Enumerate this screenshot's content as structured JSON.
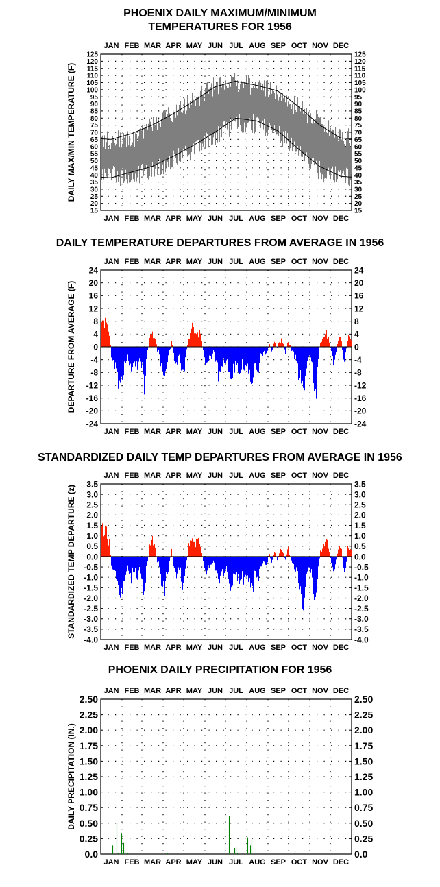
{
  "months": [
    "JAN",
    "FEB",
    "MAR",
    "APR",
    "MAY",
    "JUN",
    "JUL",
    "AUG",
    "SEP",
    "OCT",
    "NOV",
    "DEC"
  ],
  "colors": {
    "above": "#ff2000",
    "below": "#0000ff",
    "temp_band": "#7f7f7f",
    "precip": "#008000",
    "normal_line": "#000000"
  },
  "chart_data": [
    {
      "id": "temp",
      "type": "area",
      "title_line1": "PHOENIX DAILY MAXIMUM/MINIMUM",
      "title_line2": "TEMPERATURES FOR 1956",
      "ylabel": "DAILY MAX/MIN TEMPERATURE (F)",
      "ylim": [
        15,
        125
      ],
      "yticks": [
        15,
        20,
        25,
        30,
        35,
        40,
        45,
        50,
        55,
        60,
        65,
        70,
        75,
        80,
        85,
        90,
        95,
        100,
        105,
        110,
        115,
        120,
        125
      ],
      "grid": "dotted",
      "days": 366,
      "normal_high_monthly": [
        65,
        69,
        75,
        83,
        92,
        102,
        106,
        103,
        99,
        88,
        75,
        66
      ],
      "normal_low_monthly": [
        38,
        42,
        46,
        53,
        61,
        70,
        80,
        78,
        71,
        58,
        46,
        39
      ],
      "actual_high_monthly": [
        64,
        65,
        74,
        83,
        92,
        103,
        106,
        102,
        99,
        87,
        77,
        67
      ],
      "actual_low_monthly": [
        40,
        38,
        44,
        50,
        58,
        67,
        76,
        76,
        69,
        56,
        43,
        38
      ]
    },
    {
      "id": "dep",
      "type": "bar",
      "title": "DAILY TEMPERATURE DEPARTURES FROM AVERAGE IN 1956",
      "ylabel": "DEPARTURE FROM AVERAGE (F)",
      "ylim": [
        -24,
        24
      ],
      "yticks": [
        -24,
        -20,
        -16,
        -12,
        -8,
        -4,
        0,
        4,
        8,
        12,
        16,
        20,
        24
      ],
      "grid": "dotted",
      "anchors": [
        [
          1,
          8
        ],
        [
          4,
          9
        ],
        [
          9,
          9
        ],
        [
          14,
          4
        ],
        [
          16,
          -4
        ],
        [
          22,
          -8
        ],
        [
          27,
          -13
        ],
        [
          31,
          -14
        ],
        [
          35,
          -8
        ],
        [
          40,
          -4
        ],
        [
          45,
          -9
        ],
        [
          49,
          -4
        ],
        [
          53,
          -8
        ],
        [
          57,
          -4
        ],
        [
          61,
          -9
        ],
        [
          64,
          -15
        ],
        [
          68,
          -3
        ],
        [
          72,
          4
        ],
        [
          76,
          6
        ],
        [
          79,
          4
        ],
        [
          83,
          -1
        ],
        [
          86,
          -3
        ],
        [
          90,
          -11
        ],
        [
          94,
          -12
        ],
        [
          98,
          -6
        ],
        [
          101,
          -2
        ],
        [
          104,
          2
        ],
        [
          107,
          -4
        ],
        [
          111,
          -7
        ],
        [
          114,
          -3
        ],
        [
          118,
          -8
        ],
        [
          121,
          -12
        ],
        [
          125,
          -4
        ],
        [
          129,
          4
        ],
        [
          132,
          6
        ],
        [
          135,
          8
        ],
        [
          139,
          4
        ],
        [
          142,
          6
        ],
        [
          146,
          5
        ],
        [
          150,
          -2
        ],
        [
          153,
          -7
        ],
        [
          157,
          -5
        ],
        [
          161,
          -4
        ],
        [
          165,
          -2
        ],
        [
          168,
          -4
        ],
        [
          172,
          -11
        ],
        [
          176,
          -7
        ],
        [
          181,
          -5
        ],
        [
          186,
          -6
        ],
        [
          190,
          -12
        ],
        [
          194,
          -9
        ],
        [
          198,
          -6
        ],
        [
          202,
          -11
        ],
        [
          207,
          -7
        ],
        [
          211,
          -9
        ],
        [
          215,
          -8
        ],
        [
          219,
          -12
        ],
        [
          222,
          -13
        ],
        [
          226,
          -5
        ],
        [
          230,
          -9
        ],
        [
          234,
          -4
        ],
        [
          238,
          -2
        ],
        [
          242,
          -4
        ],
        [
          246,
          1
        ],
        [
          250,
          -2
        ],
        [
          254,
          2
        ],
        [
          258,
          -1
        ],
        [
          262,
          3
        ],
        [
          266,
          2
        ],
        [
          270,
          -2
        ],
        [
          274,
          3
        ],
        [
          278,
          -1
        ],
        [
          282,
          -3
        ],
        [
          286,
          -6
        ],
        [
          290,
          -11
        ],
        [
          294,
          -13
        ],
        [
          297,
          -17
        ],
        [
          301,
          -8
        ],
        [
          304,
          -4
        ],
        [
          308,
          -5
        ],
        [
          312,
          -13
        ],
        [
          315,
          -16
        ],
        [
          318,
          -5
        ],
        [
          321,
          2
        ],
        [
          325,
          3
        ],
        [
          329,
          6
        ],
        [
          333,
          4
        ],
        [
          337,
          -2
        ],
        [
          340,
          -6
        ],
        [
          343,
          -3
        ],
        [
          347,
          3
        ],
        [
          351,
          5
        ],
        [
          354,
          -4
        ],
        [
          357,
          -6
        ],
        [
          361,
          4
        ],
        [
          366,
          3
        ]
      ]
    },
    {
      "id": "std",
      "type": "bar",
      "title": "STANDARDIZED DAILY TEMP DEPARTURES FROM AVERAGE IN 1956",
      "ylabel": "STANDARDIZED TEMP DEPARTURE (z)",
      "ylim": [
        -4.0,
        3.5
      ],
      "yticks": [
        -4.0,
        -3.5,
        -3.0,
        -2.5,
        -2.0,
        -1.5,
        -1.0,
        -0.5,
        0.0,
        0.5,
        1.0,
        1.5,
        2.0,
        2.5,
        3.0,
        3.5
      ],
      "grid": "dotted",
      "anchors": [
        [
          1,
          1.4
        ],
        [
          4,
          1.6
        ],
        [
          9,
          1.5
        ],
        [
          14,
          0.7
        ],
        [
          16,
          -0.6
        ],
        [
          22,
          -1.2
        ],
        [
          27,
          -2.0
        ],
        [
          31,
          -2.3
        ],
        [
          35,
          -1.2
        ],
        [
          40,
          -0.6
        ],
        [
          45,
          -1.3
        ],
        [
          49,
          -0.6
        ],
        [
          53,
          -1.2
        ],
        [
          57,
          -0.6
        ],
        [
          61,
          -1.4
        ],
        [
          64,
          -2.1
        ],
        [
          68,
          -0.5
        ],
        [
          72,
          0.6
        ],
        [
          76,
          1.1
        ],
        [
          79,
          0.6
        ],
        [
          83,
          -0.2
        ],
        [
          86,
          -0.5
        ],
        [
          90,
          -1.7
        ],
        [
          94,
          -1.8
        ],
        [
          98,
          -0.9
        ],
        [
          101,
          -0.3
        ],
        [
          104,
          0.3
        ],
        [
          107,
          -0.6
        ],
        [
          111,
          -1.1
        ],
        [
          114,
          -0.5
        ],
        [
          118,
          -1.2
        ],
        [
          121,
          -1.9
        ],
        [
          125,
          -0.6
        ],
        [
          129,
          0.6
        ],
        [
          132,
          1.0
        ],
        [
          135,
          1.3
        ],
        [
          139,
          0.6
        ],
        [
          142,
          1.0
        ],
        [
          146,
          0.8
        ],
        [
          150,
          -0.3
        ],
        [
          153,
          -1.1
        ],
        [
          157,
          -0.8
        ],
        [
          161,
          -0.6
        ],
        [
          165,
          -0.3
        ],
        [
          168,
          -0.6
        ],
        [
          172,
          -1.7
        ],
        [
          176,
          -1.1
        ],
        [
          181,
          -0.8
        ],
        [
          186,
          -0.9
        ],
        [
          190,
          -1.9
        ],
        [
          194,
          -1.4
        ],
        [
          198,
          -0.9
        ],
        [
          202,
          -1.7
        ],
        [
          207,
          -1.1
        ],
        [
          211,
          -1.4
        ],
        [
          215,
          -1.2
        ],
        [
          219,
          -1.9
        ],
        [
          222,
          -2.1
        ],
        [
          226,
          -0.8
        ],
        [
          230,
          -1.4
        ],
        [
          234,
          -0.6
        ],
        [
          238,
          -0.3
        ],
        [
          242,
          -0.6
        ],
        [
          246,
          0.2
        ],
        [
          250,
          -0.3
        ],
        [
          254,
          0.3
        ],
        [
          258,
          -0.2
        ],
        [
          262,
          0.5
        ],
        [
          266,
          0.3
        ],
        [
          270,
          -0.3
        ],
        [
          274,
          0.5
        ],
        [
          278,
          -0.2
        ],
        [
          282,
          -0.5
        ],
        [
          286,
          -0.9
        ],
        [
          290,
          -1.7
        ],
        [
          294,
          -2.1
        ],
        [
          297,
          -3.3
        ],
        [
          301,
          -1.3
        ],
        [
          304,
          -0.6
        ],
        [
          308,
          -0.8
        ],
        [
          312,
          -2.1
        ],
        [
          315,
          -2.5
        ],
        [
          318,
          -0.8
        ],
        [
          321,
          0.3
        ],
        [
          325,
          0.5
        ],
        [
          329,
          1.1
        ],
        [
          333,
          0.6
        ],
        [
          337,
          -0.3
        ],
        [
          340,
          -1.0
        ],
        [
          343,
          -0.5
        ],
        [
          347,
          0.5
        ],
        [
          351,
          0.8
        ],
        [
          354,
          -0.6
        ],
        [
          357,
          -1.1
        ],
        [
          361,
          0.6
        ],
        [
          366,
          0.5
        ]
      ]
    },
    {
      "id": "precip",
      "type": "bar",
      "title": "PHOENIX DAILY PRECIPITATION FOR 1956",
      "ylabel": "DAILY PRECIPITATION (IN.)",
      "ylim": [
        0,
        2.5
      ],
      "yticks": [
        0.0,
        0.25,
        0.5,
        0.75,
        1.0,
        1.25,
        1.5,
        1.75,
        2.0,
        2.25,
        2.5
      ],
      "ytick_labels": [
        "0.0",
        "0.25",
        "0.50",
        "0.75",
        "1.00",
        "1.25",
        "1.50",
        "1.75",
        "2.00",
        "2.25",
        "2.50"
      ],
      "grid": "dotted",
      "days": [
        18,
        24,
        26,
        31,
        34,
        36,
        40,
        87,
        98,
        103,
        106,
        128,
        154,
        188,
        196,
        198,
        200,
        215,
        219,
        221,
        284
      ],
      "values": [
        0.14,
        0.5,
        0.02,
        0.34,
        0.18,
        0.05,
        0.02,
        0.01,
        0.02,
        0.01,
        0.01,
        0.01,
        0.01,
        0.61,
        0.1,
        0.11,
        0.02,
        0.27,
        0.14,
        0.24,
        0.05
      ]
    }
  ]
}
